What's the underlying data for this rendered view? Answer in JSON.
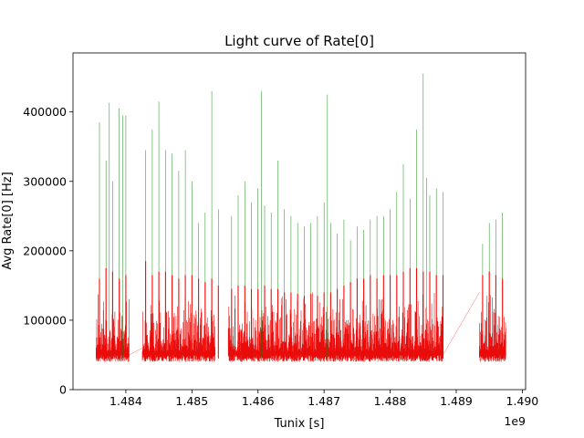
{
  "chart_data": {
    "type": "line",
    "title": "Light curve of Rate[0]",
    "xlabel": "Tunix [s]",
    "ylabel": "Avg Rate[0] [Hz]",
    "x_offset_label": "1e9",
    "xlim": [
      1.4832,
      1.49005
    ],
    "ylim": [
      0,
      485000
    ],
    "x_ticks": [
      1.484,
      1.485,
      1.486,
      1.487,
      1.488,
      1.489,
      1.49
    ],
    "x_tick_labels": [
      "1.484",
      "1.485",
      "1.486",
      "1.487",
      "1.488",
      "1.489",
      "1.490"
    ],
    "y_ticks": [
      0,
      100000,
      200000,
      300000,
      400000
    ],
    "y_tick_labels": [
      "0",
      "100000",
      "200000",
      "300000",
      "400000"
    ],
    "grid": false,
    "series": [
      {
        "color": "#008000",
        "x": [
          1.4836,
          1.4837,
          1.48375,
          1.4838,
          1.4839,
          1.48395,
          1.484,
          1.4843,
          1.4844,
          1.4845,
          1.4846,
          1.4847,
          1.4848,
          1.4849,
          1.485,
          1.4851,
          1.4852,
          1.4853,
          1.4854,
          1.4856,
          1.4857,
          1.4858,
          1.4859,
          1.486,
          1.48605,
          1.4861,
          1.4862,
          1.4863,
          1.4864,
          1.4865,
          1.4866,
          1.4867,
          1.4868,
          1.4869,
          1.487,
          1.48705,
          1.4871,
          1.4872,
          1.4873,
          1.4874,
          1.4875,
          1.4876,
          1.4877,
          1.4878,
          1.4879,
          1.488,
          1.4881,
          1.4882,
          1.4883,
          1.4884,
          1.4885,
          1.48855,
          1.4886,
          1.4887,
          1.4888,
          1.4894,
          1.4895,
          1.4896,
          1.4897
        ],
        "y": [
          385000,
          330000,
          413000,
          300000,
          405000,
          395000,
          395000,
          345000,
          375000,
          415000,
          345000,
          340000,
          315000,
          345000,
          300000,
          240000,
          255000,
          430000,
          260000,
          250000,
          280000,
          300000,
          270000,
          290000,
          430000,
          265000,
          255000,
          330000,
          260000,
          250000,
          240000,
          235000,
          240000,
          250000,
          270000,
          425000,
          240000,
          225000,
          245000,
          215000,
          235000,
          230000,
          245000,
          250000,
          250000,
          260000,
          285000,
          325000,
          275000,
          375000,
          455000,
          305000,
          280000,
          290000,
          285000,
          210000,
          240000,
          245000,
          255000
        ]
      },
      {
        "color": "#ff0000",
        "x": [
          1.4836,
          1.4837,
          1.4838,
          1.4839,
          1.484,
          1.4843,
          1.4844,
          1.4845,
          1.4846,
          1.4847,
          1.4848,
          1.4849,
          1.485,
          1.4851,
          1.4852,
          1.4853,
          1.4854,
          1.4856,
          1.4857,
          1.4858,
          1.4859,
          1.486,
          1.4861,
          1.4862,
          1.4863,
          1.4864,
          1.4865,
          1.4866,
          1.4867,
          1.4868,
          1.4869,
          1.487,
          1.4871,
          1.4872,
          1.4873,
          1.4874,
          1.4875,
          1.4876,
          1.4877,
          1.4878,
          1.4879,
          1.488,
          1.4881,
          1.4882,
          1.4883,
          1.4884,
          1.4885,
          1.4886,
          1.4887,
          1.4888,
          1.4894,
          1.4895,
          1.4896,
          1.4897
        ],
        "y": [
          160000,
          175000,
          170000,
          160000,
          165000,
          185000,
          165000,
          170000,
          170000,
          165000,
          160000,
          165000,
          165000,
          160000,
          155000,
          160000,
          150000,
          145000,
          150000,
          150000,
          145000,
          145000,
          150000,
          145000,
          145000,
          140000,
          140000,
          138000,
          135000,
          138000,
          135000,
          140000,
          140000,
          145000,
          150000,
          155000,
          160000,
          160000,
          165000,
          160000,
          165000,
          165000,
          165000,
          170000,
          175000,
          175000,
          170000,
          170000,
          165000,
          165000,
          165000,
          170000,
          165000,
          160000
        ]
      }
    ]
  }
}
